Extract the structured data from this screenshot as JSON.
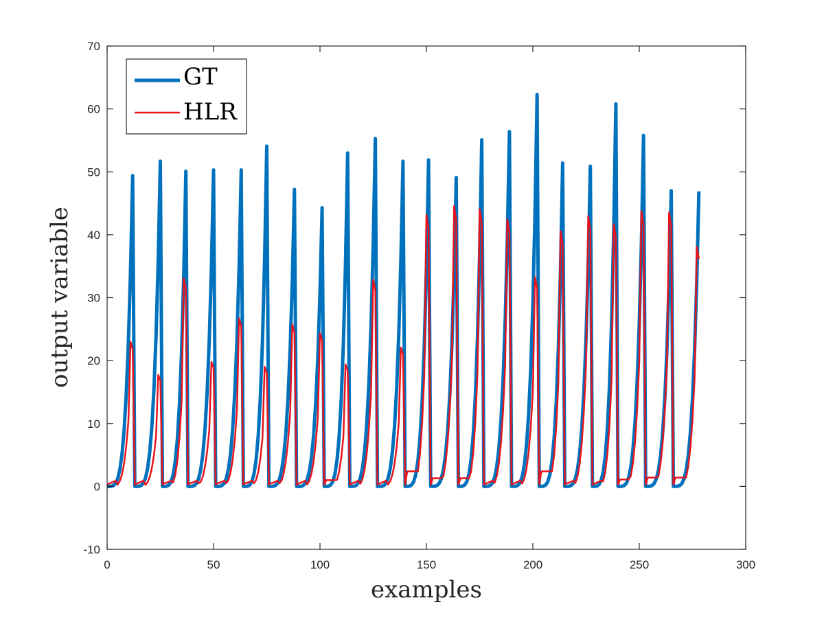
{
  "chart_data": {
    "type": "line",
    "title": "",
    "xlabel": "examples",
    "ylabel": "output variable",
    "xlim": [
      0,
      300
    ],
    "ylim": [
      -10,
      70
    ],
    "xticks": [
      0,
      50,
      100,
      150,
      200,
      250,
      300
    ],
    "yticks": [
      -10,
      0,
      10,
      20,
      30,
      40,
      50,
      60,
      70
    ],
    "xtick_labels": [
      "0",
      "50",
      "100",
      "150",
      "200",
      "250",
      "300"
    ],
    "ytick_labels": [
      "-10",
      "0",
      "10",
      "20",
      "30",
      "40",
      "50",
      "60",
      "70"
    ],
    "grid": false,
    "legend_position": "top-left",
    "cycle_starts": [
      0,
      13,
      26,
      38,
      51,
      64,
      76,
      89,
      102,
      114,
      127,
      140,
      152,
      165,
      177,
      190,
      203,
      215,
      228,
      240,
      253,
      266
    ],
    "cycle_lengths": [
      13,
      13,
      12,
      13,
      13,
      12,
      13,
      13,
      12,
      13,
      13,
      12,
      13,
      12,
      13,
      13,
      12,
      13,
      12,
      13,
      13,
      13
    ],
    "series": [
      {
        "name": "GT",
        "color": "#0072BD",
        "peaks": [
          49.4,
          51.7,
          50.1,
          50.3,
          50.3,
          54.1,
          47.2,
          44.3,
          53.0,
          55.3,
          51.7,
          51.9,
          49.1,
          55.1,
          56.4,
          62.3,
          51.4,
          50.9,
          60.8,
          55.8,
          47.0,
          46.9
        ]
      },
      {
        "name": "HLR",
        "color": "#E8141C",
        "peaks": [
          23.2,
          17.9,
          33.4,
          20.0,
          27.0,
          19.2,
          26.0,
          24.6,
          19.6,
          33.2,
          22.3,
          43.6,
          45.0,
          44.5,
          42.9,
          33.6,
          41.0,
          43.4,
          42.1,
          44.2,
          44.0,
          38.5
        ],
        "floors": [
          0,
          0,
          0.5,
          0.5,
          0.5,
          0.5,
          0.5,
          0,
          1.0,
          0,
          0,
          2.4,
          1.3,
          1.3,
          0.3,
          0,
          2.4,
          0.5,
          0.3,
          1.1,
          1.4,
          1.4
        ]
      }
    ]
  }
}
